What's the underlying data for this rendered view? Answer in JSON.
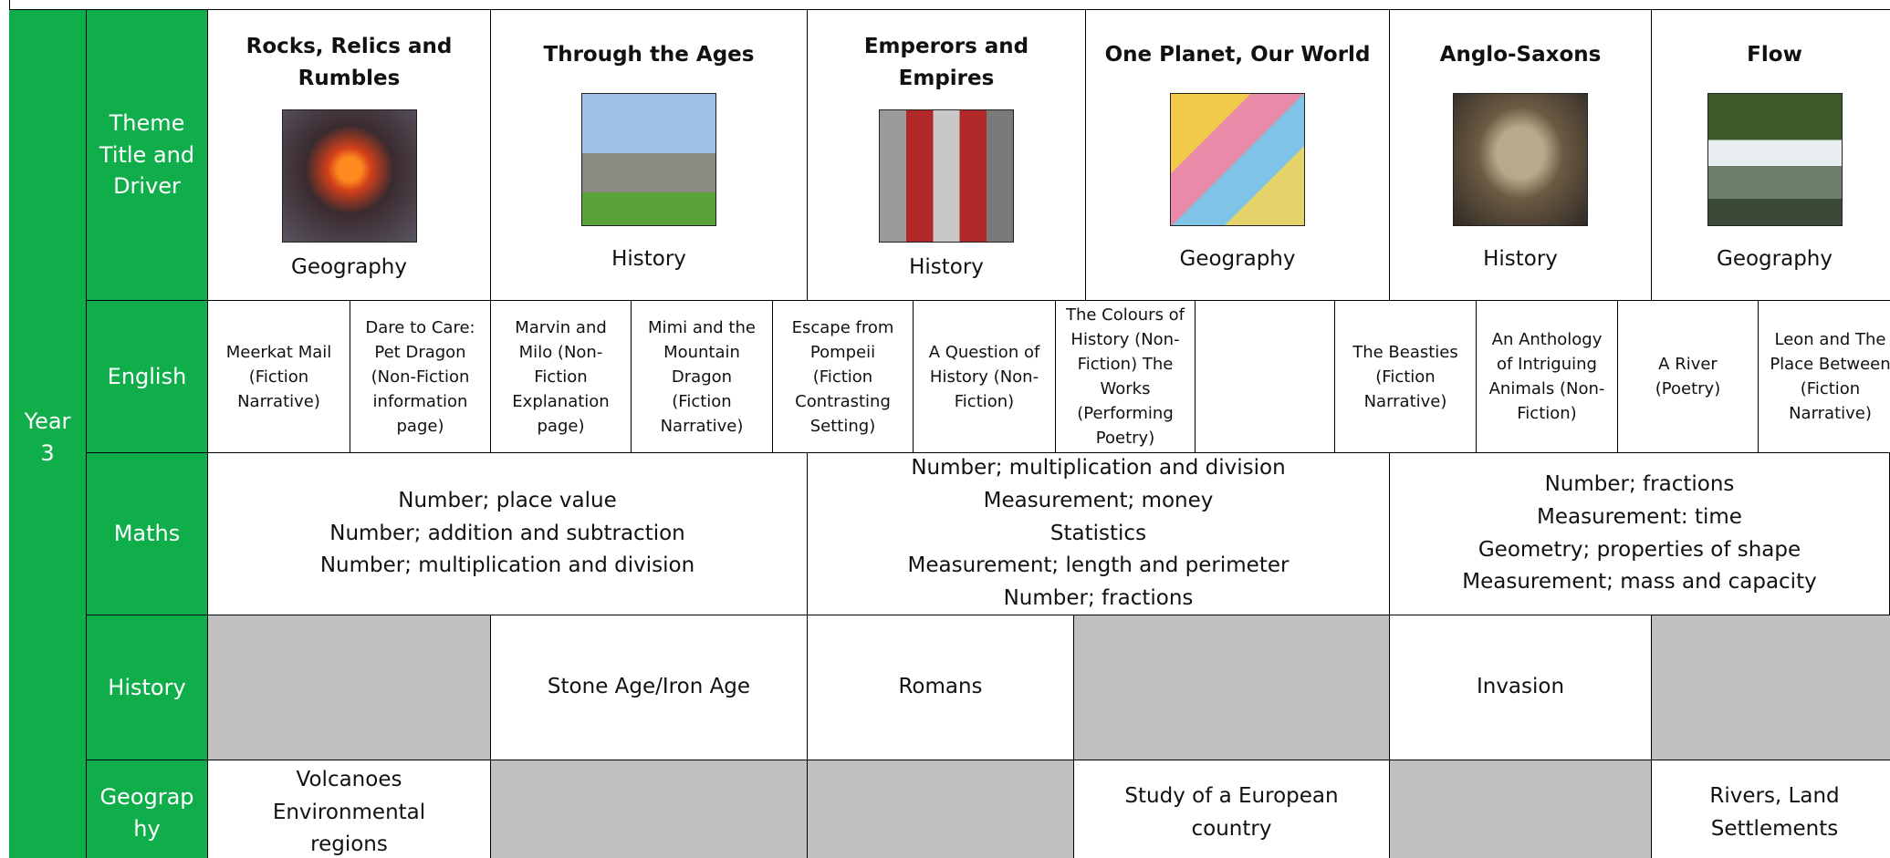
{
  "side_label": "Year 3",
  "row_labels": [
    "Theme Title and Driver",
    "English",
    "Maths",
    "History",
    "Geography"
  ],
  "themes": [
    {
      "title": "Rocks, Relics and Rumbles",
      "driver": "Geography"
    },
    {
      "title": "Through the Ages",
      "driver": "History"
    },
    {
      "title": "Emperors and Empires",
      "driver": "History"
    },
    {
      "title": "One Planet, Our World",
      "driver": "Geography"
    },
    {
      "title": "Anglo-Saxons",
      "driver": "History"
    },
    {
      "title": "Flow",
      "driver": "Geography"
    }
  ],
  "english": [
    "Meerkat Mail (Fiction Narrative)",
    "Dare to Care: Pet Dragon (Non-Fiction information page)",
    "Marvin and Milo (Non-Fiction Explanation page)",
    "Mimi and the Mountain Dragon (Fiction Narrative)",
    "Escape from Pompeii (Fiction Contrasting Setting)",
    "A Question of History (Non-Fiction)",
    "The Colours of History (Non-Fiction) The Works (Performing Poetry)",
    null,
    "The Beasties (Fiction Narrative)",
    "An Anthology of Intriguing Animals (Non-Fiction)",
    "A River (Poetry)",
    "Leon and The Place Between (Fiction Narrative)"
  ],
  "maths": [
    [
      "Number; place value",
      "Number; addition and subtraction",
      "Number; multiplication and division"
    ],
    [
      "Number; multiplication and division",
      "Measurement; money",
      "Statistics",
      "Measurement; length and perimeter",
      "Number; fractions"
    ],
    [
      "Number; fractions",
      "Measurement: time",
      "Geometry; properties of shape",
      "Measurement; mass and capacity"
    ]
  ],
  "history": [
    null,
    "Stone Age/Iron Age",
    "Romans",
    null,
    "Invasion",
    null
  ],
  "geography": [
    [
      "Volcanoes",
      "Environmental regions"
    ],
    null,
    null,
    [
      "Study of a European country"
    ],
    null,
    [
      "Rivers, Land",
      "Settlements"
    ]
  ]
}
